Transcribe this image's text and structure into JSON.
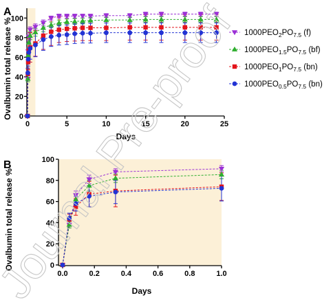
{
  "watermark": "Journal Pre-proof",
  "chart_data": [
    {
      "panel_label": "A",
      "type": "line",
      "xlabel": "Days",
      "ylabel": "Ovalbumin total release %",
      "xlim": [
        0,
        25
      ],
      "ylim": [
        0,
        110
      ],
      "xticks": [
        "0",
        "5",
        "10",
        "15",
        "20",
        "25"
      ],
      "yticks": [
        "0",
        "20",
        "40",
        "60",
        "80",
        "100"
      ],
      "grid": false,
      "legend": "right",
      "shaded_region": {
        "x": [
          0,
          1
        ],
        "color": "#fcf0d7"
      },
      "x": [
        0,
        0.042,
        0.083,
        0.167,
        0.333,
        1,
        2,
        3,
        4,
        5,
        6,
        7,
        8,
        10,
        13,
        15,
        17,
        20,
        22,
        24
      ],
      "series": [
        {
          "name_parts": [
            {
              "text": "1000PEO"
            },
            {
              "text": "2",
              "sub": true
            },
            {
              "text": "PO"
            },
            {
              "text": "7.5",
              "sub": true
            },
            {
              "text": " (f)"
            }
          ],
          "color": "#9b30d6",
          "marker": "triangle-down",
          "values": [
            0,
            38,
            66,
            81,
            88,
            91,
            95,
            100,
            102,
            102,
            102,
            102,
            102,
            102.5,
            102.5,
            104,
            104,
            104,
            104,
            104
          ],
          "error": [
            0,
            3,
            4,
            4,
            3,
            3,
            3,
            2,
            2,
            2,
            2,
            2,
            2,
            2,
            2,
            2,
            2,
            2,
            2,
            2
          ]
        },
        {
          "name_parts": [
            {
              "text": "1000PEO"
            },
            {
              "text": "1.5",
              "sub": true
            },
            {
              "text": "PO"
            },
            {
              "text": "7.5",
              "sub": true
            },
            {
              "text": " (bf)"
            }
          ],
          "color": "#2fae2f",
          "marker": "triangle-up",
          "values": [
            0,
            38,
            62,
            75,
            82,
            85.5,
            90,
            93,
            95,
            96,
            96.5,
            97,
            97.5,
            98,
            98,
            98.5,
            98.5,
            98.5,
            98.5,
            98.5
          ],
          "error": [
            0,
            3,
            5,
            5,
            4,
            4,
            4,
            3,
            3,
            3,
            3,
            3,
            3,
            3,
            3,
            3,
            3,
            3,
            3,
            3
          ]
        },
        {
          "name_parts": [
            {
              "text": "1000PEO"
            },
            {
              "text": "1",
              "sub": true
            },
            {
              "text": "PO"
            },
            {
              "text": "7.5",
              "sub": true
            },
            {
              "text": " (bn)"
            }
          ],
          "color": "#e3141b",
          "marker": "square",
          "values": [
            0,
            43,
            55,
            67,
            70,
            74,
            82,
            86,
            88,
            89,
            89.5,
            90,
            90,
            90,
            90.5,
            90.5,
            90.5,
            90.5,
            90.5,
            90.5
          ],
          "error": [
            0,
            5,
            8,
            12,
            15,
            13,
            14,
            14,
            13,
            13,
            13,
            13,
            13,
            13,
            13,
            13,
            13,
            13,
            13,
            13
          ]
        },
        {
          "name_parts": [
            {
              "text": "1000PEO"
            },
            {
              "text": "0.5",
              "sub": true
            },
            {
              "text": "PO"
            },
            {
              "text": "7.5",
              "sub": true
            },
            {
              "text": " (bn)"
            }
          ],
          "color": "#2233d4",
          "marker": "circle",
          "values": [
            0,
            44,
            58,
            65,
            69,
            72.5,
            78,
            81,
            82.5,
            83,
            84,
            84.5,
            84.5,
            85,
            85,
            85,
            85,
            85,
            85,
            85
          ],
          "error": [
            0,
            5,
            7,
            10,
            11,
            12,
            11,
            10,
            10,
            10,
            10,
            10,
            10,
            10,
            10,
            10,
            10,
            10,
            10,
            10
          ]
        }
      ]
    },
    {
      "panel_label": "B",
      "type": "line",
      "xlabel": "Days",
      "ylabel": "Ovalbumin total release %",
      "xlim": [
        0,
        1
      ],
      "ylim": [
        0,
        100
      ],
      "xticks": [
        "0.0",
        "0.2",
        "0.4",
        "0.6",
        "0.8",
        "1.0"
      ],
      "yticks": [
        "0",
        "20",
        "40",
        "60",
        "80",
        "100"
      ],
      "grid": false,
      "shaded_region": {
        "x": [
          0,
          1
        ],
        "color": "#fcf0d7"
      },
      "x": [
        0,
        0.042,
        0.083,
        0.167,
        0.333,
        1
      ],
      "series": [
        {
          "color": "#9b30d6",
          "marker": "triangle-down",
          "values": [
            0,
            38,
            66,
            81,
            88,
            91
          ],
          "error": [
            0,
            3,
            4,
            4,
            3,
            3
          ]
        },
        {
          "color": "#2fae2f",
          "marker": "triangle-up",
          "values": [
            0,
            38,
            62,
            75,
            82,
            85.5
          ],
          "error": [
            0,
            3,
            5,
            5,
            4,
            4
          ]
        },
        {
          "color": "#e3141b",
          "marker": "square",
          "values": [
            0,
            43,
            55,
            67,
            70,
            74
          ],
          "error": [
            0,
            5,
            8,
            12,
            15,
            13
          ]
        },
        {
          "color": "#2233d4",
          "marker": "circle",
          "values": [
            0,
            44,
            58,
            65,
            69,
            72.5
          ],
          "error": [
            0,
            5,
            7,
            10,
            11,
            12
          ]
        }
      ]
    }
  ]
}
